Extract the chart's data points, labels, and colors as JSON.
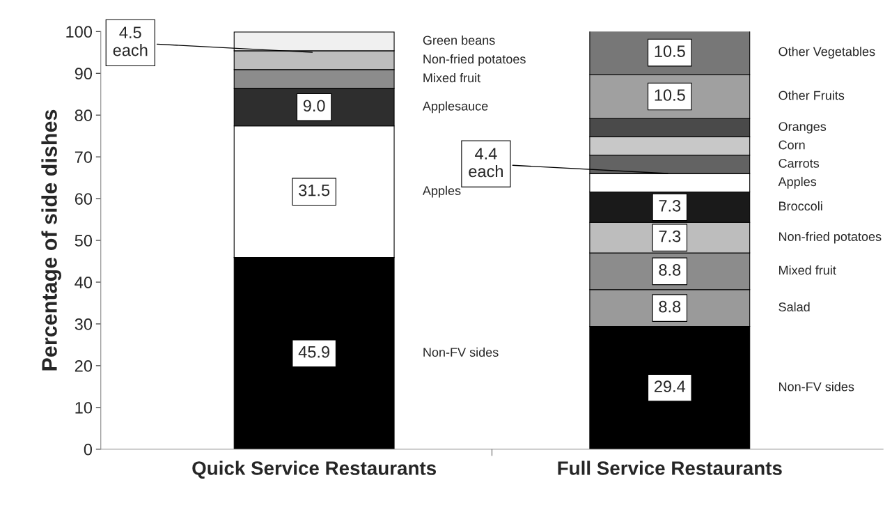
{
  "chart_data": {
    "type": "bar",
    "stacked": true,
    "ylabel": "Percentage of side dishes",
    "categories": [
      "Quick Service Restaurants",
      "Full Service Restaurants"
    ],
    "ylim": [
      0,
      100
    ],
    "yticks": [
      0,
      10,
      20,
      30,
      40,
      50,
      60,
      70,
      80,
      90,
      100
    ],
    "grid": false,
    "legend": false,
    "series": [
      {
        "name": "Non-FV sides",
        "color": "#000000",
        "values": [
          45.9,
          null
        ],
        "value_labels": [
          "45.9",
          null
        ]
      },
      {
        "name": "Apples",
        "color": "#ffffff",
        "values": [
          31.5,
          null
        ],
        "value_labels": [
          "31.5",
          null
        ]
      },
      {
        "name": "Applesauce",
        "color": "#2e2e2e",
        "values": [
          9.0,
          null
        ],
        "value_labels": [
          "9.0",
          null
        ]
      },
      {
        "name": "Mixed fruit",
        "color": "#8c8c8c",
        "values": [
          4.5,
          null
        ]
      },
      {
        "name": "Non-fried potatoes",
        "color": "#bdbdbd",
        "values": [
          4.5,
          null
        ]
      },
      {
        "name": "Green beans",
        "color": "#f0f0f0",
        "values": [
          4.5,
          null
        ]
      },
      {
        "name": "Non-FV sides",
        "color": "#000000",
        "values": [
          null,
          29.4
        ],
        "value_labels": [
          null,
          "29.4"
        ]
      },
      {
        "name": "Salad",
        "color": "#9a9a9a",
        "values": [
          null,
          8.8
        ],
        "value_labels": [
          null,
          "8.8"
        ]
      },
      {
        "name": "Mixed fruit",
        "color": "#8c8c8c",
        "values": [
          null,
          8.8
        ],
        "value_labels": [
          null,
          "8.8"
        ]
      },
      {
        "name": "Non-fried potatoes",
        "color": "#bdbdbd",
        "values": [
          null,
          7.3
        ],
        "value_labels": [
          null,
          "7.3"
        ]
      },
      {
        "name": "Broccoli",
        "color": "#1a1a1a",
        "values": [
          null,
          7.3
        ],
        "value_labels": [
          null,
          "7.3"
        ]
      },
      {
        "name": "Apples",
        "color": "#ffffff",
        "values": [
          null,
          4.4
        ]
      },
      {
        "name": "Carrots",
        "color": "#636363",
        "values": [
          null,
          4.4
        ]
      },
      {
        "name": "Corn",
        "color": "#c8c8c8",
        "values": [
          null,
          4.4
        ]
      },
      {
        "name": "Oranges",
        "color": "#4a4a4a",
        "values": [
          null,
          4.4
        ]
      },
      {
        "name": "Other Fruits",
        "color": "#a0a0a0",
        "values": [
          null,
          10.5
        ],
        "value_labels": [
          null,
          "10.5"
        ]
      },
      {
        "name": "Other Vegetables",
        "color": "#777777",
        "values": [
          null,
          10.5
        ],
        "value_labels": [
          null,
          "10.5"
        ]
      }
    ],
    "annotations": [
      {
        "text": "4.5\neach",
        "x": "Quick Service Restaurants",
        "y": 95
      },
      {
        "text": "4.4\neach",
        "x": "Full Service Restaurants",
        "y": 66
      }
    ]
  }
}
